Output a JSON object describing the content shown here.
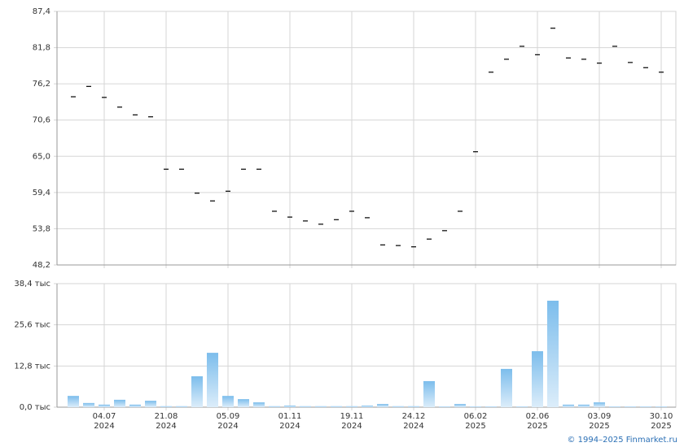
{
  "chart_data": [
    {
      "type": "scatter",
      "marker": "dash",
      "color": "#000000",
      "values": [
        74.2,
        75.8,
        74.1,
        72.6,
        71.4,
        71.1,
        63.0,
        63.0,
        59.3,
        58.1,
        59.6,
        63.0,
        63.0,
        56.5,
        55.6,
        55.0,
        54.5,
        55.2,
        56.5,
        55.5,
        51.3,
        51.2,
        51.0,
        52.2,
        53.5,
        56.5,
        65.7,
        78.0,
        80.0,
        82.0,
        80.7,
        84.8,
        80.2,
        80.0,
        79.4,
        82.0,
        79.5,
        78.7,
        78.0
      ],
      "ylim": [
        48.2,
        87.4
      ],
      "yticks": [
        {
          "value": 48.2,
          "label": "48,2"
        },
        {
          "value": 53.8,
          "label": "53,8"
        },
        {
          "value": 59.4,
          "label": "59,4"
        },
        {
          "value": 65.0,
          "label": "65,0"
        },
        {
          "value": 70.6,
          "label": "70,6"
        },
        {
          "value": 76.2,
          "label": "76,2"
        },
        {
          "value": 81.8,
          "label": "81,8"
        },
        {
          "value": 87.4,
          "label": "87,4"
        }
      ],
      "grid": true
    },
    {
      "type": "bar",
      "color": [
        "#7cbdec",
        "#dcedfa"
      ],
      "categories": [
        null,
        null,
        "04.07\n2024",
        null,
        null,
        null,
        "21.08\n2024",
        null,
        null,
        null,
        "05.09\n2024",
        null,
        null,
        null,
        "01.11\n2024",
        null,
        null,
        null,
        "19.11\n2024",
        null,
        null,
        null,
        "24.12\n2024",
        null,
        null,
        null,
        "06.02\n2025",
        null,
        null,
        null,
        "02.06\n2025",
        null,
        null,
        null,
        "03.09\n2025",
        null,
        null,
        null,
        "30.10\n2025"
      ],
      "values": [
        3.5,
        1.3,
        0.8,
        2.3,
        0.8,
        2.0,
        0.3,
        0.3,
        9.6,
        16.9,
        3.5,
        2.5,
        1.5,
        0.3,
        0.5,
        0.3,
        0.3,
        0.3,
        0.3,
        0.5,
        1.0,
        0.3,
        0.3,
        8.1,
        0.2,
        1.0,
        0.2,
        0.2,
        11.9,
        0.2,
        17.4,
        33.1,
        0.8,
        0.8,
        1.5,
        0.2,
        0.2,
        0.2,
        0.2
      ],
      "ylim": [
        0,
        38.4
      ],
      "yticks": [
        {
          "value": 0,
          "label": "0,0 тыс"
        },
        {
          "value": 12.8,
          "label": "12,8 тыс"
        },
        {
          "value": 25.6,
          "label": "25,6 тыс"
        },
        {
          "value": 38.4,
          "label": "38,4 тыс"
        }
      ],
      "grid": true
    }
  ],
  "footer": "© 1994–2025 Finmarket.ru"
}
